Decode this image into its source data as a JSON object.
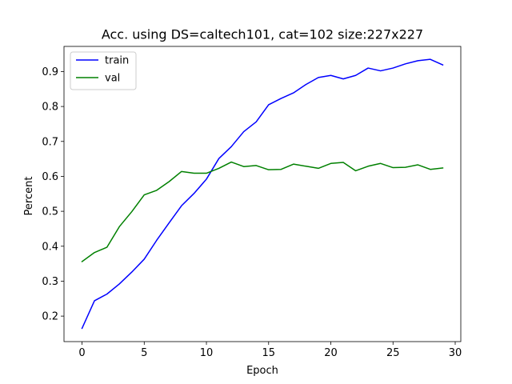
{
  "chart_data": {
    "type": "line",
    "title": "Acc. using DS=caltech101, cat=102 size:227x227",
    "xlabel": "Epoch",
    "ylabel": "Percent",
    "xlim": [
      -1.45,
      30.45
    ],
    "ylim": [
      0.127,
      0.972
    ],
    "xticks": [
      0,
      5,
      10,
      15,
      20,
      25,
      30
    ],
    "yticks": [
      0.2,
      0.3,
      0.4,
      0.5,
      0.6,
      0.7,
      0.8,
      0.9
    ],
    "xtick_labels": [
      "0",
      "5",
      "10",
      "15",
      "20",
      "25",
      "30"
    ],
    "ytick_labels": [
      "0.2",
      "0.3",
      "0.4",
      "0.5",
      "0.6",
      "0.7",
      "0.8",
      "0.9"
    ],
    "grid": false,
    "legend_position": "upper-left",
    "x": [
      0,
      1,
      2,
      3,
      4,
      5,
      6,
      7,
      8,
      9,
      10,
      11,
      12,
      13,
      14,
      15,
      16,
      17,
      18,
      19,
      20,
      21,
      22,
      23,
      24,
      25,
      26,
      27,
      28,
      29
    ],
    "series": [
      {
        "name": "train",
        "color": "#0000ff",
        "values": [
          0.165,
          0.244,
          0.263,
          0.292,
          0.326,
          0.363,
          0.417,
          0.467,
          0.516,
          0.551,
          0.592,
          0.651,
          0.685,
          0.728,
          0.756,
          0.805,
          0.823,
          0.839,
          0.863,
          0.883,
          0.889,
          0.879,
          0.889,
          0.91,
          0.902,
          0.91,
          0.922,
          0.931,
          0.935,
          0.919
        ]
      },
      {
        "name": "val",
        "color": "#008000",
        "values": [
          0.356,
          0.382,
          0.397,
          0.456,
          0.499,
          0.547,
          0.56,
          0.585,
          0.614,
          0.609,
          0.609,
          0.623,
          0.641,
          0.628,
          0.631,
          0.619,
          0.62,
          0.635,
          0.629,
          0.623,
          0.637,
          0.64,
          0.616,
          0.629,
          0.637,
          0.625,
          0.626,
          0.633,
          0.62,
          0.624
        ]
      }
    ]
  }
}
